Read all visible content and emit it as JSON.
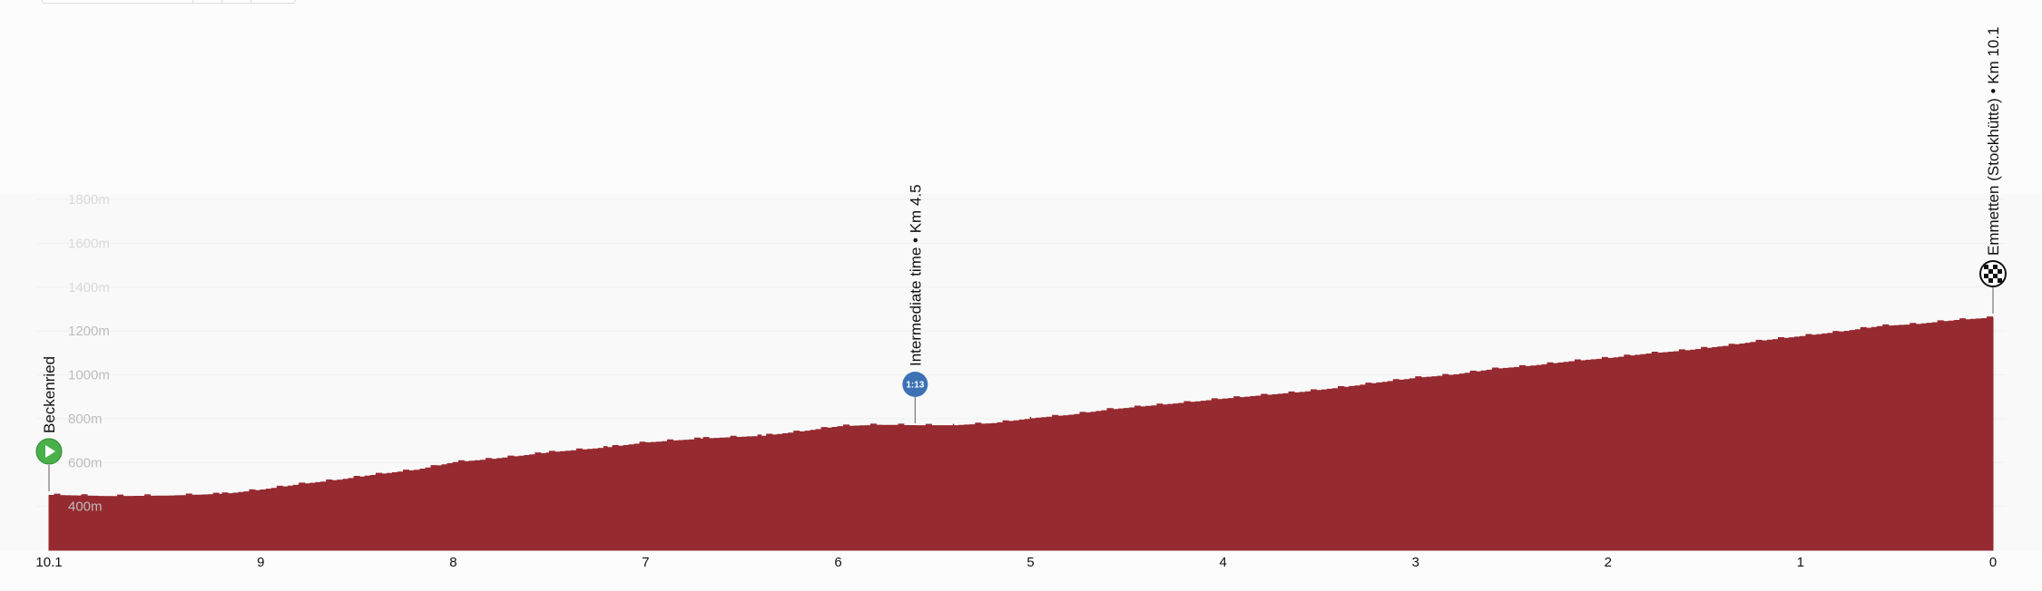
{
  "chart_data": {
    "type": "area",
    "title": "",
    "xlabel": "",
    "ylabel": "",
    "x_reversed": true,
    "xlim": [
      0,
      10.1
    ],
    "ylim": [
      200,
      1800
    ],
    "y_ticks": [
      400,
      600,
      800,
      1000,
      1200,
      1400,
      1600,
      1800
    ],
    "y_tick_labels": [
      "400m",
      "600m",
      "800m",
      "1000m",
      "1200m",
      "1400m",
      "1600m",
      "1800m"
    ],
    "x_ticks": [
      10.1,
      9,
      8,
      7,
      6,
      5,
      4,
      3,
      2,
      1,
      0
    ],
    "x_tick_labels": [
      "10.1",
      "9",
      "8",
      "7",
      "6",
      "5",
      "4",
      "3",
      "2",
      "1",
      "0"
    ],
    "area_color": "#962a31",
    "series": [
      {
        "x": [
          10.1,
          9.8,
          9.5,
          9.2,
          9.0,
          8.8,
          8.6,
          8.4,
          8.2,
          8.0,
          7.8,
          7.5,
          7.2,
          7.0,
          6.7,
          6.4,
          6.2,
          6.0,
          5.8,
          5.6,
          5.4,
          5.2,
          5.0,
          4.8,
          4.6,
          4.4,
          4.2,
          4.0,
          3.8,
          3.6,
          3.4,
          3.2,
          3.0,
          2.8,
          2.6,
          2.4,
          2.2,
          2.0,
          1.8,
          1.6,
          1.4,
          1.2,
          1.0,
          0.8,
          0.6,
          0.4,
          0.2,
          0.0
        ],
        "y": [
          450,
          445,
          447,
          455,
          475,
          500,
          520,
          545,
          565,
          600,
          615,
          645,
          668,
          690,
          708,
          720,
          740,
          764,
          770,
          768,
          768,
          778,
          800,
          816,
          840,
          856,
          872,
          890,
          905,
          920,
          940,
          963,
          985,
          1000,
          1025,
          1040,
          1060,
          1075,
          1095,
          1110,
          1130,
          1155,
          1175,
          1195,
          1220,
          1230,
          1248,
          1260
        ]
      }
    ],
    "markers": [
      {
        "km_to_go": 10.1,
        "label": "Beckenried",
        "icon": "start-play-icon",
        "color": "#4ab04a"
      },
      {
        "km_to_go": 5.6,
        "label": "Intermediate time • Km 4.5",
        "badge": "1:13",
        "icon": "intermediate-time-icon",
        "color": "#3c72b4"
      },
      {
        "km_to_go": 0.0,
        "label": "Emmetten (Stockhütte) • Km 10.1",
        "icon": "finish-checkered-flag-icon",
        "color": "#111111"
      }
    ]
  }
}
